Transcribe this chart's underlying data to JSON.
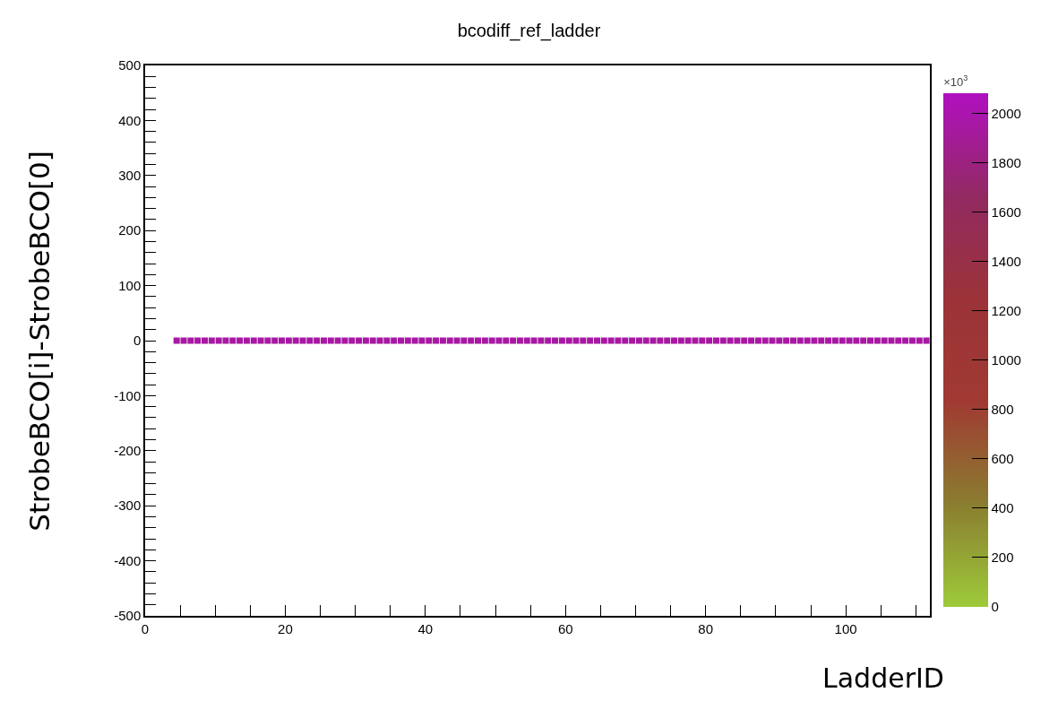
{
  "chart_data": {
    "type": "scatter",
    "title": "bcodiff_ref_ladder",
    "xlabel": "LadderID",
    "ylabel": "StrobeBCO[i]-StrobeBCO[0]",
    "clabel": "×10$^{3}$",
    "x": [
      4.5,
      5.5,
      6.5,
      7.5,
      8.5,
      9.5,
      10.5,
      11.5,
      12.5,
      13.5,
      14.5,
      15.5,
      16.5,
      17.5,
      18.5,
      19.5,
      20.5,
      21.5,
      22.5,
      23.5,
      24.5,
      25.5,
      26.5,
      27.5,
      28.5,
      29.5,
      30.5,
      31.5,
      32.5,
      33.5,
      34.5,
      35.5,
      36.5,
      37.5,
      38.5,
      39.5,
      40.5,
      41.5,
      42.5,
      43.5,
      44.5,
      45.5,
      46.5,
      47.5,
      48.5,
      49.5,
      50.5,
      51.5,
      52.5,
      53.5,
      54.5,
      55.5,
      56.5,
      57.5,
      58.5,
      59.5,
      60.5,
      61.5,
      62.5,
      63.5,
      64.5,
      65.5,
      66.5,
      67.5,
      68.5,
      69.5,
      70.5,
      71.5,
      72.5,
      73.5,
      74.5,
      75.5,
      76.5,
      77.5,
      78.5,
      79.5,
      80.5,
      81.5,
      82.5,
      83.5,
      84.5,
      85.5,
      86.5,
      87.5,
      88.5,
      89.5,
      90.5,
      91.5,
      92.5,
      93.5,
      94.5,
      95.5,
      96.5,
      97.5,
      98.5,
      99.5,
      100.5,
      101.5,
      102.5,
      103.5,
      104.5,
      105.5,
      106.5,
      107.5,
      108.5,
      109.5,
      110.5,
      111.5
    ],
    "values": [
      0,
      0,
      0,
      0,
      0,
      0,
      0,
      0,
      0,
      0,
      0,
      0,
      0,
      0,
      0,
      0,
      0,
      0,
      0,
      0,
      0,
      0,
      0,
      0,
      0,
      0,
      0,
      0,
      0,
      0,
      0,
      0,
      0,
      0,
      0,
      0,
      0,
      0,
      0,
      0,
      0,
      0,
      0,
      0,
      0,
      0,
      0,
      0,
      0,
      0,
      0,
      0,
      0,
      0,
      0,
      0,
      0,
      0,
      0,
      0,
      0,
      0,
      0,
      0,
      0,
      0,
      0,
      0,
      0,
      0,
      0,
      0,
      0,
      0,
      0,
      0,
      0,
      0,
      0,
      0,
      0,
      0,
      0,
      0,
      0,
      0,
      0,
      0,
      0,
      0,
      0,
      0,
      0,
      0,
      0,
      0,
      0,
      0,
      0,
      0,
      0,
      0,
      0,
      0,
      0,
      0,
      0,
      0
    ],
    "cvalues": [
      1950,
      1950,
      1950,
      1950,
      1950,
      1950,
      1950,
      1950,
      1950,
      1950,
      1950,
      1950,
      1950,
      1950,
      1950,
      1950,
      1950,
      1950,
      1950,
      1950,
      1950,
      1950,
      1950,
      1950,
      1950,
      1950,
      1950,
      1950,
      1950,
      1950,
      1950,
      1950,
      1950,
      1950,
      1950,
      1950,
      1950,
      1950,
      1950,
      1950,
      1950,
      1950,
      1950,
      1950,
      1950,
      1950,
      1950,
      1950,
      1950,
      1950,
      1950,
      1950,
      1950,
      1950,
      1950,
      1950,
      1950,
      1950,
      1950,
      1950,
      1950,
      1950,
      1950,
      1950,
      1950,
      1950,
      1950,
      1950,
      1950,
      1950,
      1950,
      1950,
      1950,
      1950,
      1950,
      1950,
      1950,
      1950,
      1950,
      1950,
      1950,
      1950,
      1950,
      1950,
      1950,
      1950,
      1950,
      1950,
      1950,
      1950,
      1950,
      1950,
      1950,
      1950,
      1950,
      1950,
      1950,
      1950,
      1950,
      1950,
      1950,
      1950,
      1950,
      1950,
      1950,
      1950,
      1950,
      1950
    ],
    "xlim": [
      0,
      112
    ],
    "xticks": [
      0,
      {
        "value": 5,
        "label": null
      },
      {
        "value": 10,
        "label": null
      },
      {
        "value": 15,
        "label": null
      },
      20,
      {
        "value": 25,
        "label": null
      },
      {
        "value": 30,
        "label": null
      },
      {
        "value": 35,
        "label": null
      },
      40,
      {
        "value": 45,
        "label": null
      },
      {
        "value": 50,
        "label": null
      },
      {
        "value": 55,
        "label": null
      },
      60,
      {
        "value": 65,
        "label": null
      },
      {
        "value": 70,
        "label": null
      },
      {
        "value": 75,
        "label": null
      },
      80,
      {
        "value": 85,
        "label": null
      },
      {
        "value": 90,
        "label": null
      },
      {
        "value": 95,
        "label": null
      },
      100,
      {
        "value": 105,
        "label": null
      },
      {
        "value": 110,
        "label": null
      }
    ],
    "ylim": [
      -500,
      500
    ],
    "yticks": [
      -500,
      {
        "value": -480,
        "label": null
      },
      {
        "value": -460,
        "label": null
      },
      {
        "value": -440,
        "label": null
      },
      {
        "value": -420,
        "label": null
      },
      -400,
      {
        "value": -380,
        "label": null
      },
      {
        "value": -360,
        "label": null
      },
      {
        "value": -340,
        "label": null
      },
      {
        "value": -320,
        "label": null
      },
      -300,
      {
        "value": -280,
        "label": null
      },
      {
        "value": -260,
        "label": null
      },
      {
        "value": -240,
        "label": null
      },
      {
        "value": -220,
        "label": null
      },
      -200,
      {
        "value": -180,
        "label": null
      },
      {
        "value": -160,
        "label": null
      },
      {
        "value": -140,
        "label": null
      },
      {
        "value": -120,
        "label": null
      },
      -100,
      {
        "value": -80,
        "label": null
      },
      {
        "value": -60,
        "label": null
      },
      {
        "value": -40,
        "label": null
      },
      {
        "value": -20,
        "label": null
      },
      0,
      {
        "value": 20,
        "label": null
      },
      {
        "value": 40,
        "label": null
      },
      {
        "value": 60,
        "label": null
      },
      {
        "value": 80,
        "label": null
      },
      100,
      {
        "value": 120,
        "label": null
      },
      {
        "value": 140,
        "label": null
      },
      {
        "value": 160,
        "label": null
      },
      {
        "value": 180,
        "label": null
      },
      200,
      {
        "value": 220,
        "label": null
      },
      {
        "value": 240,
        "label": null
      },
      {
        "value": 260,
        "label": null
      },
      {
        "value": 280,
        "label": null
      },
      300,
      {
        "value": 320,
        "label": null
      },
      {
        "value": 340,
        "label": null
      },
      {
        "value": 360,
        "label": null
      },
      {
        "value": 380,
        "label": null
      },
      400,
      {
        "value": 420,
        "label": null
      },
      {
        "value": 440,
        "label": null
      },
      {
        "value": 460,
        "label": null
      },
      {
        "value": 480,
        "label": null
      },
      500
    ],
    "clim": [
      0,
      2080
    ],
    "cticks": [
      0,
      200,
      400,
      600,
      800,
      1000,
      1200,
      1400,
      1600,
      1800,
      2000
    ],
    "marker": "square",
    "grid": false
  }
}
